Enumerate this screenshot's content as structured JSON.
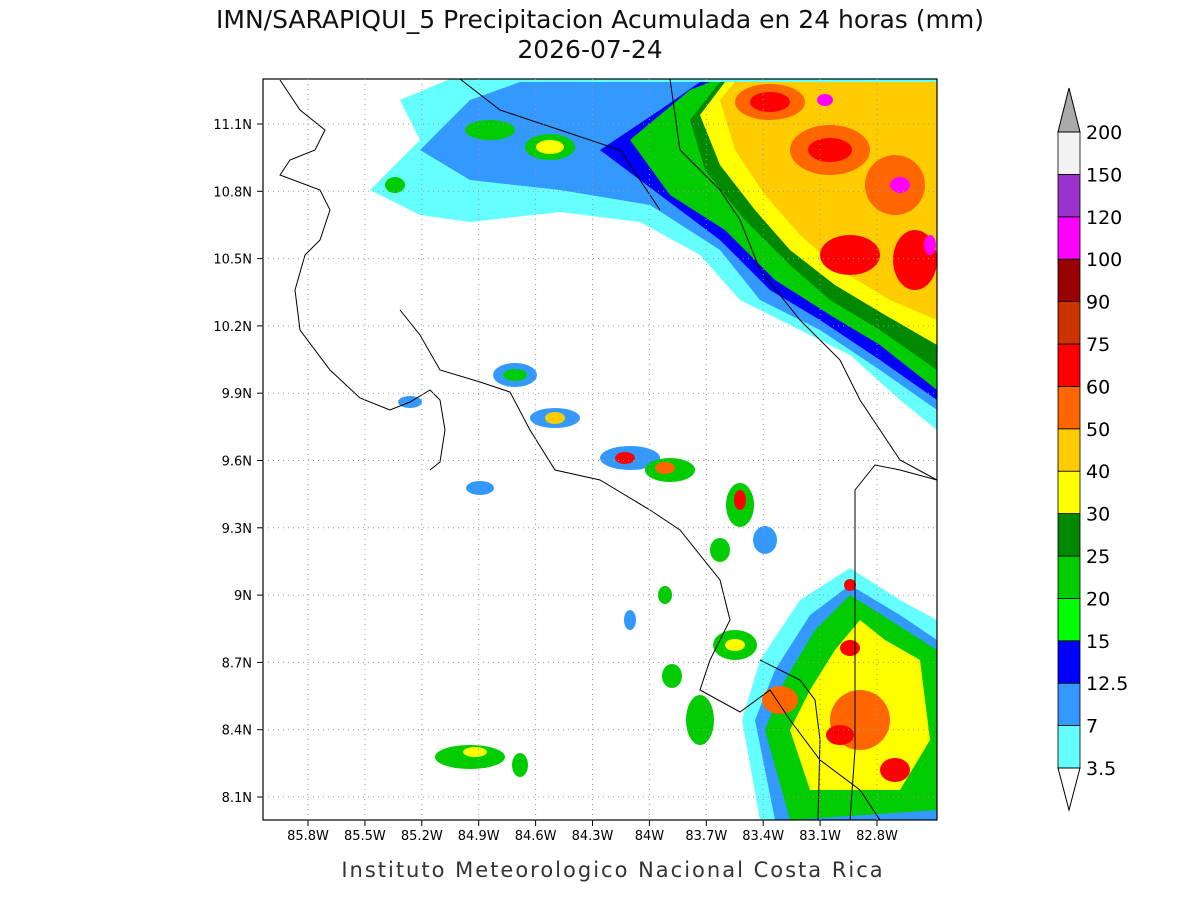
{
  "header": {
    "title": "IMN/SARAPIQUI_5 Precipitacion Acumulada en 24 horas (mm)",
    "subtitle": "2026-07-24"
  },
  "map": {
    "x_ticks": [
      "85.8W",
      "85.5W",
      "85.2W",
      "84.9W",
      "84.6W",
      "84.3W",
      "84W",
      "83.7W",
      "83.4W",
      "83.1W",
      "82.8W"
    ],
    "y_ticks": [
      "11.1N",
      "10.8N",
      "10.5N",
      "10.2N",
      "9.9N",
      "9.6N",
      "9.3N",
      "9N",
      "8.7N",
      "8.4N",
      "8.1N"
    ]
  },
  "colorbar": {
    "levels": [
      3.5,
      7,
      12.5,
      15,
      20,
      25,
      30,
      40,
      50,
      60,
      75,
      90,
      100,
      120,
      150,
      200
    ],
    "colors": [
      "#66ffff",
      "#3399ff",
      "#0000ff",
      "#00ff00",
      "#00cc00",
      "#008800",
      "#ffff00",
      "#ffcc00",
      "#ff6600",
      "#ff0000",
      "#cc3300",
      "#990000",
      "#ff00ff",
      "#9933cc",
      "#f2f2f2"
    ]
  },
  "footer": "Instituto Meteorologico Nacional Costa Rica"
}
